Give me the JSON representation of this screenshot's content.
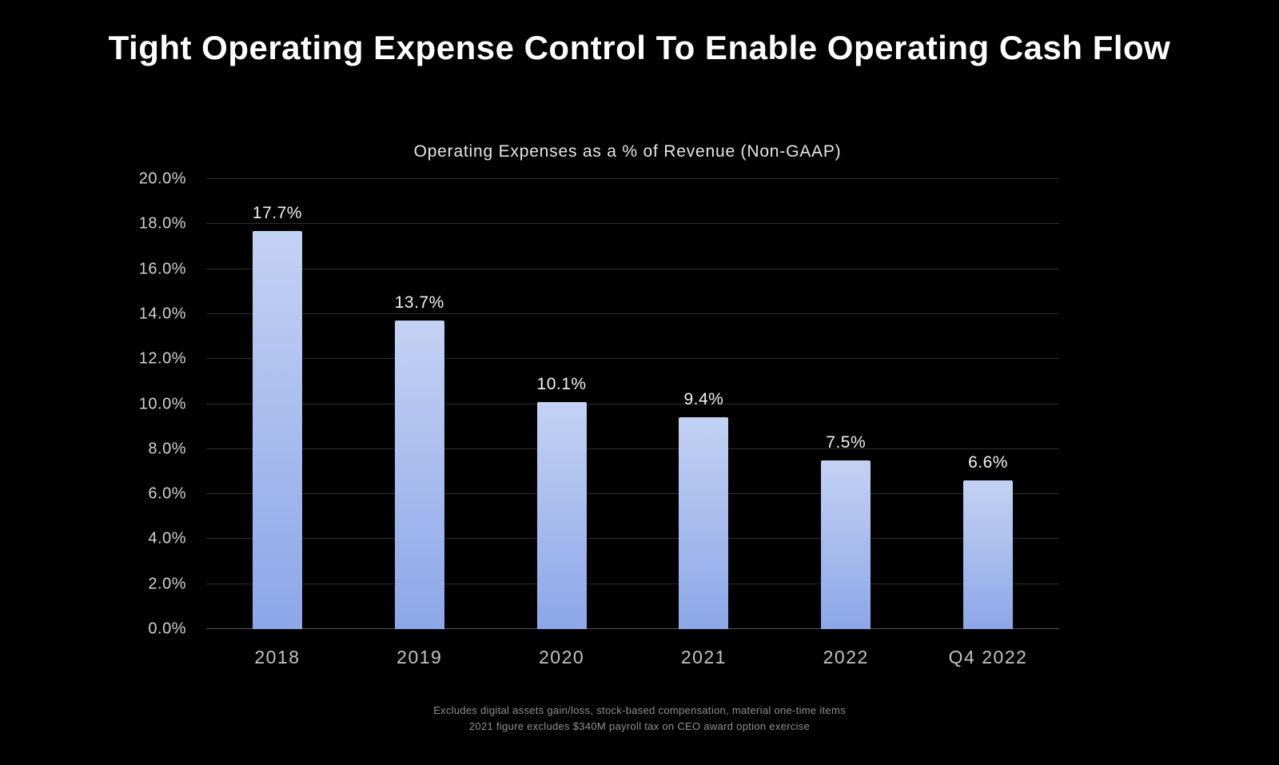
{
  "slide": {
    "title": "Tight Operating Expense Control To Enable Operating Cash Flow",
    "footnotes": [
      "Excludes digital assets gain/loss, stock-based compensation, material one-time items",
      "2021 figure excludes $340M payroll tax on CEO award option exercise"
    ]
  },
  "chart_data": {
    "type": "bar",
    "title": "Operating Expenses as a % of Revenue (Non-GAAP)",
    "categories": [
      "2018",
      "2019",
      "2020",
      "2021",
      "2022",
      "Q4 2022"
    ],
    "values": [
      17.7,
      13.7,
      10.1,
      9.4,
      7.5,
      6.6
    ],
    "value_labels": [
      "17.7%",
      "13.7%",
      "10.1%",
      "9.4%",
      "7.5%",
      "6.6%"
    ],
    "xlabel": "",
    "ylabel": "",
    "ylim": [
      0,
      20
    ],
    "ytick_step": 2,
    "ytick_labels": [
      "0.0%",
      "2.0%",
      "4.0%",
      "6.0%",
      "8.0%",
      "10.0%",
      "12.0%",
      "14.0%",
      "16.0%",
      "18.0%",
      "20.0%"
    ],
    "grid": true,
    "legend": "none",
    "colors": {
      "background": "#000000",
      "bar_top": "#c3d2f3",
      "bar_bottom": "#8ca6e8",
      "gridline": "#2e2e2e",
      "baseline": "#555555",
      "title_text": "#ffffff",
      "axis_text": "#d2d2d2"
    }
  }
}
